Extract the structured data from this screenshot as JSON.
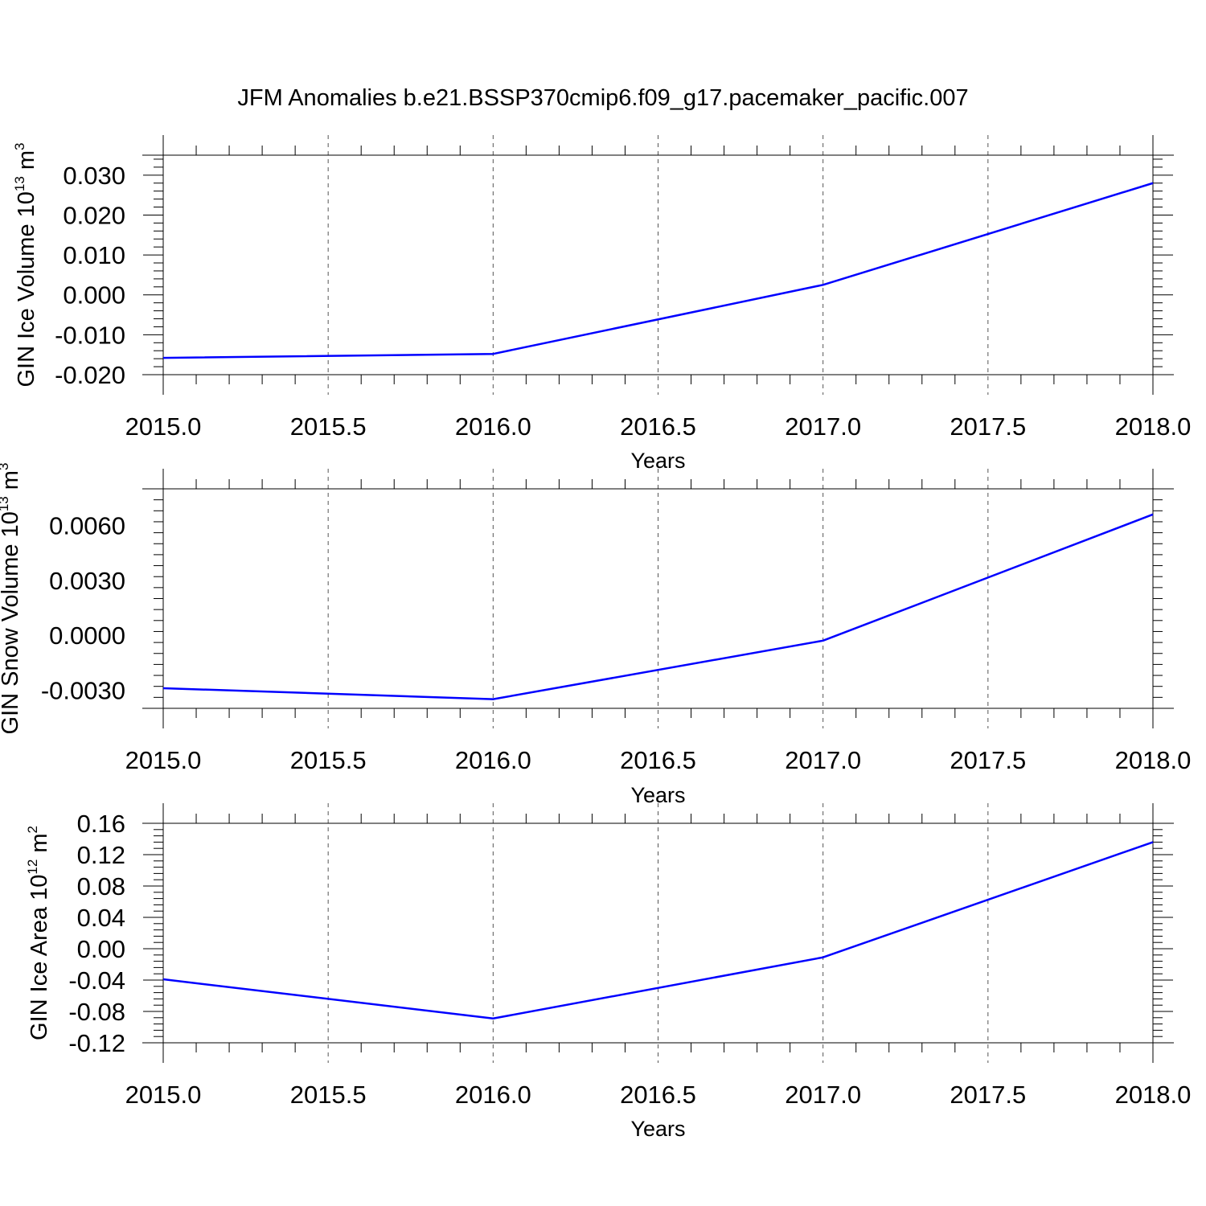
{
  "title": "JFM Anomalies b.e21.BSSP370cmip6.f09_g17.pacemaker_pacific.007",
  "colors": {
    "line": "#0000ff",
    "axis": "#000000",
    "grid": "#555555",
    "background": "#ffffff"
  },
  "chart_data": [
    {
      "type": "line",
      "xlabel": "Years",
      "ylabel": {
        "prefix": "GIN Ice Volume 10",
        "exponent": "13",
        "unit": " m",
        "unit_exponent": "3"
      },
      "xlim": [
        2015.0,
        2018.0
      ],
      "ylim": [
        -0.02,
        0.035
      ],
      "x_ticks": [
        "2015.0",
        "2015.5",
        "2016.0",
        "2016.5",
        "2017.0",
        "2017.5",
        "2018.0"
      ],
      "y_ticks": [
        {
          "value": -0.02,
          "label": "-0.020"
        },
        {
          "value": -0.01,
          "label": "-0.010"
        },
        {
          "value": 0.0,
          "label": "0.000"
        },
        {
          "value": 0.01,
          "label": "0.010"
        },
        {
          "value": 0.02,
          "label": "0.020"
        },
        {
          "value": 0.03,
          "label": "0.030"
        }
      ],
      "grid": "vertical dashed",
      "x": [
        2015,
        2016,
        2017,
        2018
      ],
      "series": [
        {
          "values": [
            -0.0158,
            -0.0148,
            0.0025,
            0.028
          ]
        }
      ]
    },
    {
      "type": "line",
      "xlabel": "Years",
      "ylabel": {
        "prefix": "GIN Snow Volume 10",
        "exponent": "13",
        "unit": " m",
        "unit_exponent": "3"
      },
      "xlim": [
        2015.0,
        2018.0
      ],
      "ylim": [
        -0.004,
        0.008
      ],
      "x_ticks": [
        "2015.0",
        "2015.5",
        "2016.0",
        "2016.5",
        "2017.0",
        "2017.5",
        "2018.0"
      ],
      "y_ticks": [
        {
          "value": -0.003,
          "label": "-0.0030"
        },
        {
          "value": 0.0,
          "label": "0.0000"
        },
        {
          "value": 0.003,
          "label": "0.0030"
        },
        {
          "value": 0.006,
          "label": "0.0060"
        }
      ],
      "grid": "vertical dashed",
      "x": [
        2015,
        2016,
        2017,
        2018
      ],
      "series": [
        {
          "values": [
            -0.0029,
            -0.0035,
            -0.0003,
            0.0066
          ]
        }
      ]
    },
    {
      "type": "line",
      "xlabel": "Years",
      "ylabel": {
        "prefix": "GIN Ice Area 10",
        "exponent": "12",
        "unit": " m",
        "unit_exponent": "2"
      },
      "xlim": [
        2015.0,
        2018.0
      ],
      "ylim": [
        -0.12,
        0.16
      ],
      "x_ticks": [
        "2015.0",
        "2015.5",
        "2016.0",
        "2016.5",
        "2017.0",
        "2017.5",
        "2018.0"
      ],
      "y_ticks": [
        {
          "value": -0.12,
          "label": "-0.12"
        },
        {
          "value": -0.08,
          "label": "-0.08"
        },
        {
          "value": -0.04,
          "label": "-0.04"
        },
        {
          "value": 0.0,
          "label": "0.00"
        },
        {
          "value": 0.04,
          "label": "0.04"
        },
        {
          "value": 0.08,
          "label": "0.08"
        },
        {
          "value": 0.12,
          "label": "0.12"
        },
        {
          "value": 0.16,
          "label": "0.16"
        }
      ],
      "grid": "vertical dashed",
      "x": [
        2015,
        2016,
        2017,
        2018
      ],
      "series": [
        {
          "values": [
            -0.039,
            -0.089,
            -0.011,
            0.136
          ]
        }
      ]
    }
  ]
}
